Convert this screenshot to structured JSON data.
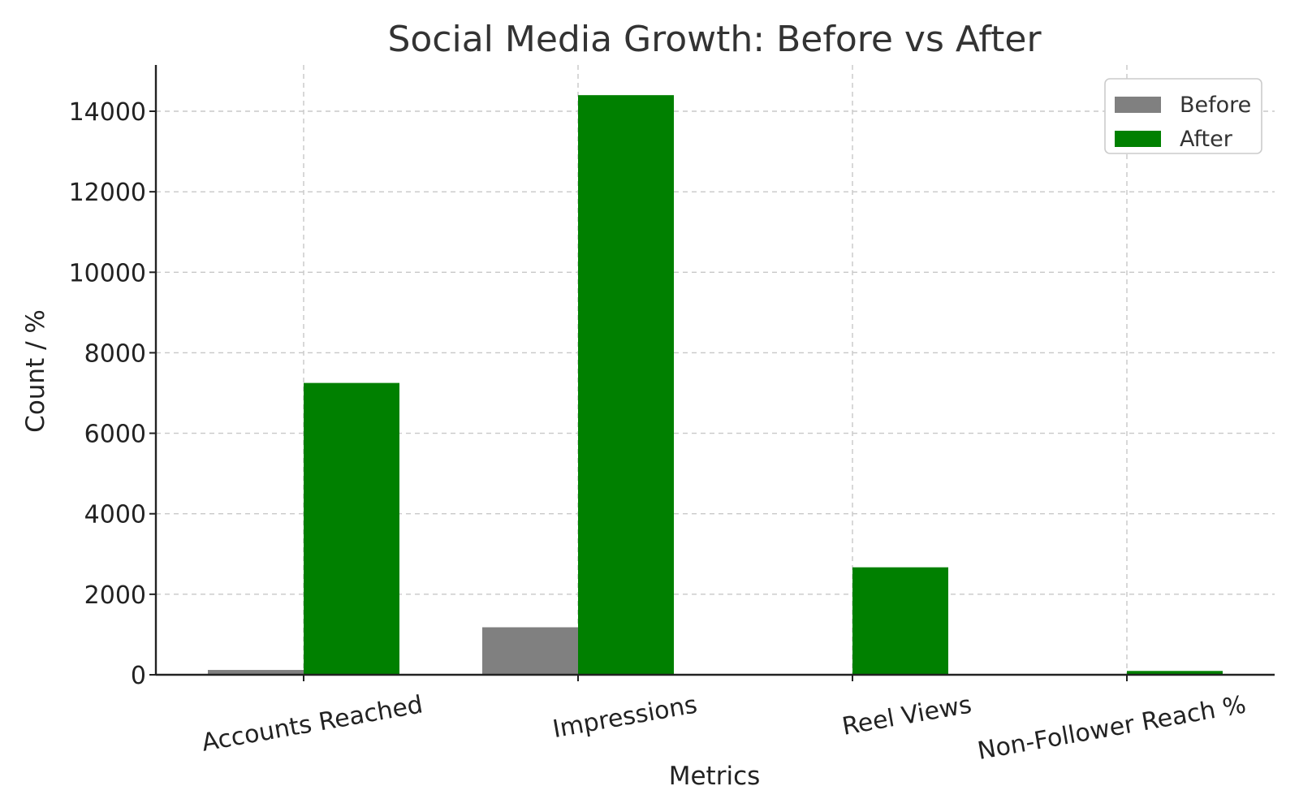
{
  "chart_data": {
    "type": "bar",
    "title": "Social Media Growth: Before vs After",
    "xlabel": "Metrics",
    "ylabel": "Count / %",
    "categories": [
      "Accounts Reached",
      "Impressions",
      "Reel Views",
      "Non-Follower Reach %"
    ],
    "series": [
      {
        "name": "Before",
        "color": "#808080",
        "values": [
          120,
          1180,
          0,
          0
        ]
      },
      {
        "name": "After",
        "color": "#008000",
        "values": [
          7250,
          14400,
          2670,
          95
        ]
      }
    ],
    "ylim": [
      0,
      15150
    ],
    "yticks": [
      0,
      2000,
      4000,
      6000,
      8000,
      10000,
      12000,
      14000
    ],
    "ytick_labels": [
      "0",
      "2000",
      "4000",
      "6000",
      "8000",
      "10000",
      "12000",
      "14000"
    ],
    "grid": true,
    "legend_position": "top-right"
  }
}
